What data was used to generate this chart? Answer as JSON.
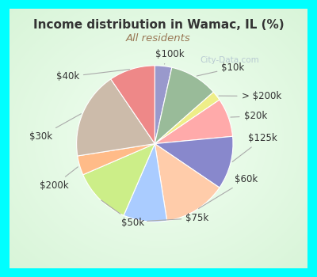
{
  "title": "Income distribution in Wamac, IL (%)",
  "subtitle": "All residents",
  "title_color": "#333333",
  "subtitle_color": "#997755",
  "watermark": "City-Data.com",
  "labels": [
    "$100k",
    "$10k",
    "> $200k",
    "$20k",
    "$125k",
    "$60k",
    "$75k",
    "$50k",
    "$200k",
    "$30k",
    "$40k"
  ],
  "sizes": [
    3.5,
    10,
    2,
    8,
    11,
    13,
    9,
    12,
    4,
    18,
    9.5
  ],
  "colors": [
    "#9999cc",
    "#99bb99",
    "#eeee88",
    "#ffaaaa",
    "#8888cc",
    "#ffccaa",
    "#aaccff",
    "#ccee88",
    "#ffbb88",
    "#ccbbaa",
    "#ee8888"
  ],
  "label_fontsize": 8.5,
  "fig_bg": "#00ffff",
  "inner_bg_color": "#d8f0e0",
  "figsize": [
    4.0,
    3.5
  ],
  "dpi": 100
}
